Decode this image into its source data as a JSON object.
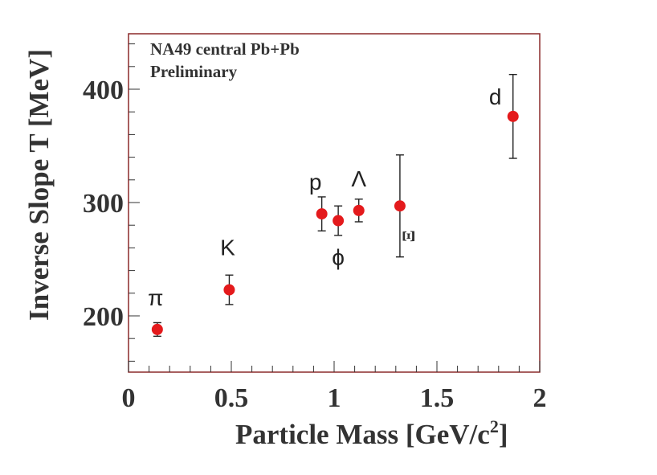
{
  "chart_data": {
    "type": "scatter",
    "title": "NA49 central Pb+Pb",
    "subtitle": "Preliminary",
    "xlabel": "Particle Mass [GeV/c",
    "xlabel_superscript": "2",
    "xlabel_close": "]",
    "ylabel": "Inverse Slope T [MeV]",
    "xlim": [
      0,
      2
    ],
    "ylim": [
      150,
      450
    ],
    "x_ticks": [
      0,
      0.5,
      1,
      1.5,
      2
    ],
    "x_tick_labels": [
      "0",
      "0.5",
      "1",
      "1.5",
      "2"
    ],
    "y_ticks": [
      200,
      300,
      400
    ],
    "y_tick_labels": [
      "200",
      "300",
      "400"
    ],
    "marker_color": "#e41a1c",
    "frame_color": "#8b2a2a",
    "grid": false,
    "points": [
      {
        "label": "π",
        "x": 0.14,
        "y": 188,
        "err_low": 6,
        "err_high": 6
      },
      {
        "label": "K",
        "x": 0.49,
        "y": 223,
        "err_low": 13,
        "err_high": 13
      },
      {
        "label": "p",
        "x": 0.94,
        "y": 290,
        "err_low": 15,
        "err_high": 15
      },
      {
        "label": "ϕ",
        "x": 1.02,
        "y": 284,
        "err_low": 13,
        "err_high": 13
      },
      {
        "label": "Λ",
        "x": 1.12,
        "y": 293,
        "err_low": 10,
        "err_high": 10
      },
      {
        "label": "Ξ",
        "x": 1.32,
        "y": 297,
        "err_low": 45,
        "err_high": 45
      },
      {
        "label": "d",
        "x": 1.87,
        "y": 376,
        "err_low": 37,
        "err_high": 37
      }
    ]
  }
}
